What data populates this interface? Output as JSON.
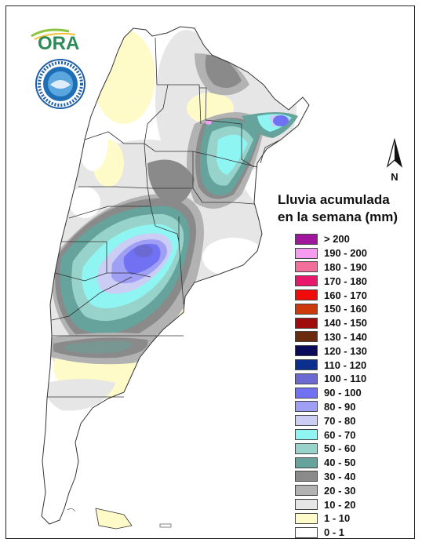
{
  "map": {
    "legend_title_line1": "Lluvia acumulada",
    "legend_title_line2": "en la semana (mm)",
    "north_label": "N",
    "logo_text": "ORA",
    "legend": [
      {
        "label": "> 200",
        "color": "#a0179e"
      },
      {
        "label": "190 - 200",
        "color": "#f59bf0"
      },
      {
        "label": "180 - 190",
        "color": "#f26f9c"
      },
      {
        "label": "170 - 180",
        "color": "#e8176b"
      },
      {
        "label": "160 - 170",
        "color": "#f20a0a"
      },
      {
        "label": "150 - 160",
        "color": "#cc3a0c"
      },
      {
        "label": "140 - 150",
        "color": "#a00d0d"
      },
      {
        "label": "130 - 140",
        "color": "#6b2c0e"
      },
      {
        "label": "120 - 130",
        "color": "#0b0b5a"
      },
      {
        "label": "110 - 120",
        "color": "#0a2f8f"
      },
      {
        "label": "100 - 110",
        "color": "#6a6ad2"
      },
      {
        "label": "90 - 100",
        "color": "#7171f3"
      },
      {
        "label": "80 - 90",
        "color": "#9e9ff5"
      },
      {
        "label": "70 - 80",
        "color": "#cbcdf5"
      },
      {
        "label": "60 - 70",
        "color": "#8ff5f2"
      },
      {
        "label": "50 - 60",
        "color": "#98d3cb"
      },
      {
        "label": "40 - 50",
        "color": "#66a39c"
      },
      {
        "label": "30 - 40",
        "color": "#8a8a8a"
      },
      {
        "label": "20 - 30",
        "color": "#b2b2b2"
      },
      {
        "label": "10 - 20",
        "color": "#e6e6e6"
      },
      {
        "label": "1 - 10",
        "color": "#fffbc9"
      },
      {
        "label": "0 - 1",
        "color": "#ffffff"
      }
    ]
  }
}
